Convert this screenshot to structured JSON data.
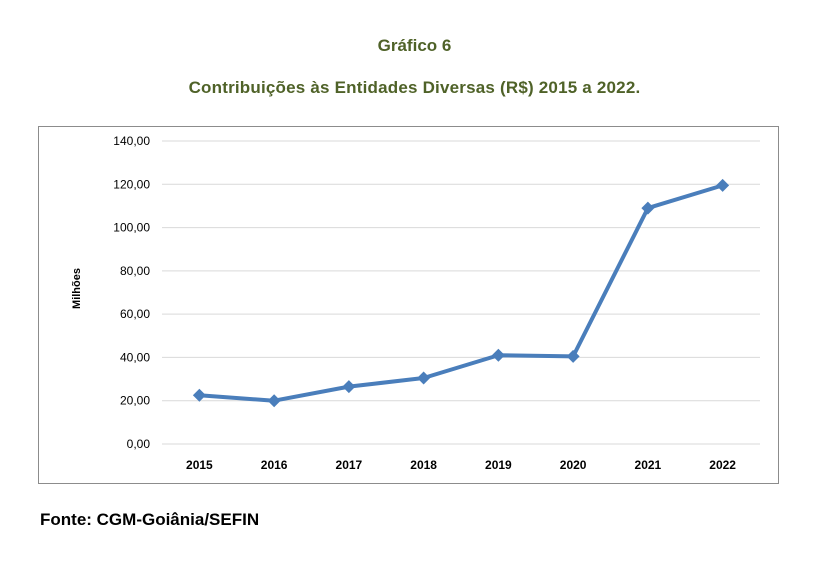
{
  "header": {
    "title": "Gráfico 6",
    "subtitle": "Contribuições às Entidades Diversas (R$) 2015 a 2022."
  },
  "footer": {
    "source": "Fonte: CGM-Goiânia/SEFIN"
  },
  "colors": {
    "title": "#4f6228",
    "line": "#4a7ebb",
    "grid": "#d9d9d9"
  },
  "chart_data": {
    "type": "line",
    "title": "Contribuições às Entidades Diversas (R$) 2015 a 2022.",
    "xlabel": "",
    "ylabel": "Milhões",
    "categories": [
      "2015",
      "2016",
      "2017",
      "2018",
      "2019",
      "2020",
      "2021",
      "2022"
    ],
    "series": [
      {
        "values": [
          22.5,
          20.0,
          26.5,
          30.5,
          41.0,
          40.5,
          109.0,
          119.5
        ]
      }
    ],
    "ylim": [
      0,
      140
    ],
    "yticks": [
      0,
      20,
      40,
      60,
      80,
      100,
      120,
      140
    ],
    "ytick_labels": [
      "0,00",
      "20,00",
      "40,00",
      "60,00",
      "80,00",
      "100,00",
      "120,00",
      "140,00"
    ],
    "grid": true,
    "legend": "none",
    "marker": "diamond"
  }
}
